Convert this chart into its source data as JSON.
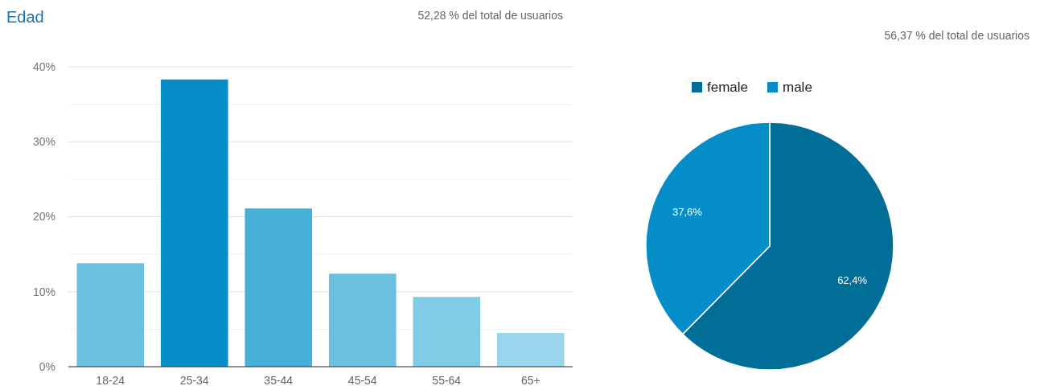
{
  "chart_data": [
    {
      "type": "bar",
      "title": "Edad",
      "subtitle": "52,28 % del total de usuarios",
      "categories": [
        "18-24",
        "25-34",
        "35-44",
        "45-54",
        "55-64",
        "65+"
      ],
      "values": [
        13.8,
        38.3,
        21.1,
        12.4,
        9.3,
        4.5
      ],
      "colors": [
        "#6bc0e0",
        "#058dc7",
        "#47b0d8",
        "#6bc0e0",
        "#80cce6",
        "#99d5ec"
      ],
      "ylim": [
        0,
        40
      ],
      "yticks": [
        {
          "value": 0,
          "label": "0%"
        },
        {
          "value": 5,
          "label": null
        },
        {
          "value": 10,
          "label": "10%"
        },
        {
          "value": 15,
          "label": null
        },
        {
          "value": 20,
          "label": "20%"
        },
        {
          "value": 25,
          "label": null
        },
        {
          "value": 30,
          "label": "30%"
        },
        {
          "value": 35,
          "label": null
        },
        {
          "value": 40,
          "label": "40%"
        }
      ],
      "grid": "y"
    },
    {
      "type": "pie",
      "subtitle": "56,37 % del total de usuarios",
      "categories": [
        "female",
        "male"
      ],
      "values": [
        62.4,
        37.6
      ],
      "colors": [
        "#006e97",
        "#058dc7"
      ],
      "value_labels": [
        "62,4%",
        "37,6%"
      ],
      "legend": "top"
    }
  ]
}
